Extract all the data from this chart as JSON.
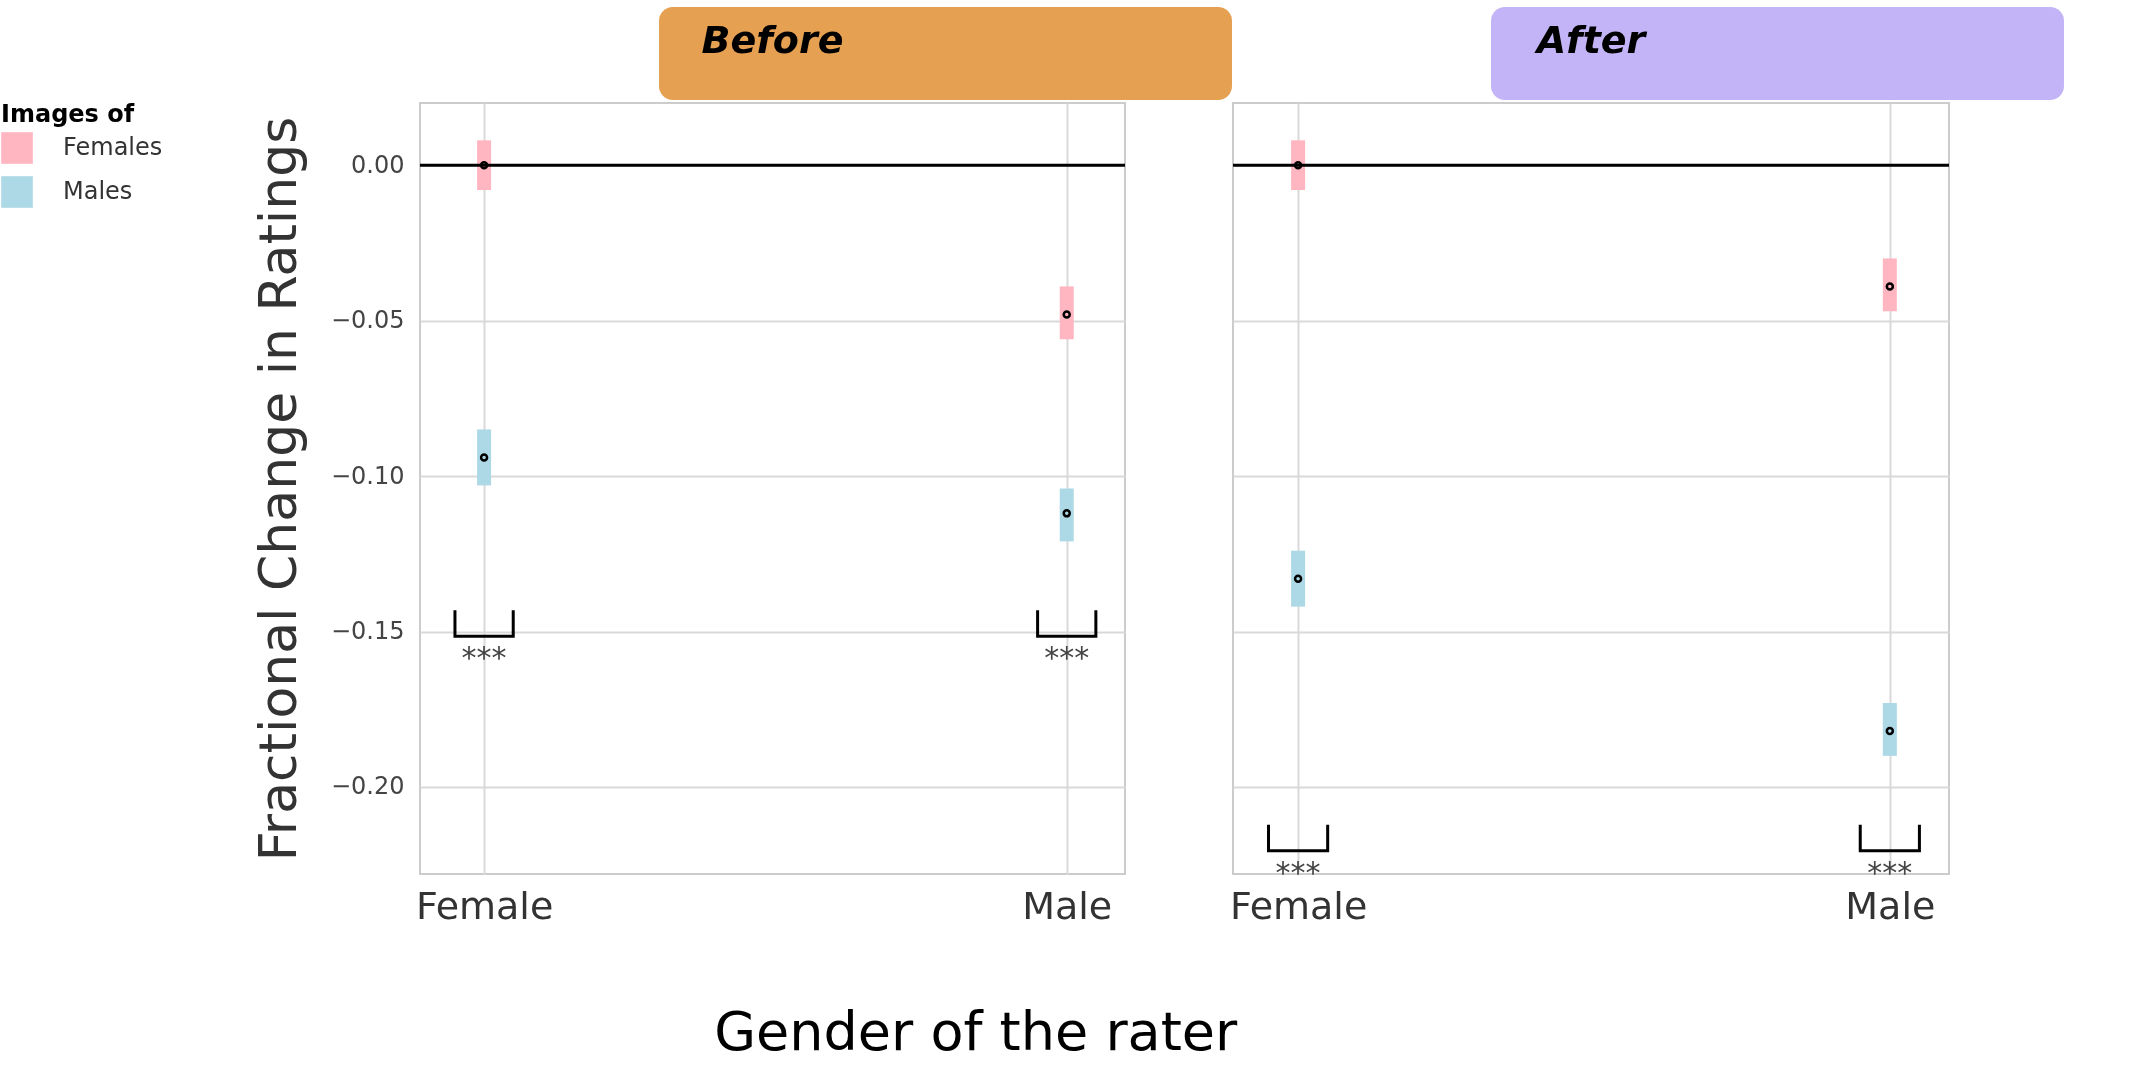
{
  "chart_data": [
    {
      "type": "scatter",
      "title": "Before",
      "ylabel": "Fractional Change in Ratings",
      "xlabel": "Gender of the rater",
      "legend_title": "Images of",
      "legend": "left",
      "grid": true,
      "marker": "circle",
      "categories": [
        "Female",
        "Male"
      ],
      "ylim": [
        -0.228,
        0.02
      ],
      "yticks": [
        {
          "value": 0,
          "label": "0.00"
        },
        {
          "value": -0.05,
          "label": "−0.05"
        },
        {
          "value": -0.1,
          "label": "−0.10"
        },
        {
          "value": -0.15,
          "label": "−0.15"
        },
        {
          "value": -0.2,
          "label": "−0.20"
        }
      ],
      "series": [
        {
          "name": "Females",
          "color": "#ffb6c1",
          "values": [
            0.0,
            -0.048
          ],
          "errors": [
            [
              -0.008,
              0.008
            ],
            [
              -0.056,
              -0.039
            ]
          ]
        },
        {
          "name": "Males",
          "color": "#add8e6",
          "values": [
            -0.094,
            -0.112
          ],
          "errors": [
            [
              -0.103,
              -0.085
            ],
            [
              -0.121,
              -0.104
            ]
          ]
        }
      ],
      "ref_lines": [
        {
          "axis": "y",
          "value": 0,
          "color": "#000000"
        }
      ],
      "annotations": [
        "***",
        "***"
      ]
    },
    {
      "type": "scatter",
      "title": "After",
      "grid": true,
      "marker": "circle",
      "tick_labels": "x",
      "categories": [
        "Female",
        "Male"
      ],
      "ylim": [
        -0.228,
        0.02
      ],
      "yticks": [
        0,
        -0.05,
        -0.1,
        -0.15,
        -0.2
      ],
      "series": [
        {
          "color": "#ffb6c1",
          "values": [
            0.0,
            -0.039
          ],
          "errors": [
            [
              -0.008,
              0.008
            ],
            [
              -0.047,
              -0.03
            ]
          ]
        },
        {
          "color": "#add8e6",
          "values": [
            -0.133,
            -0.182
          ],
          "errors": [
            [
              -0.142,
              -0.124
            ],
            [
              -0.19,
              -0.173
            ]
          ]
        }
      ],
      "ref_lines": [
        {
          "axis": "y",
          "value": 0,
          "color": "#000000"
        }
      ],
      "annotations": [
        "***",
        "***"
      ]
    }
  ]
}
